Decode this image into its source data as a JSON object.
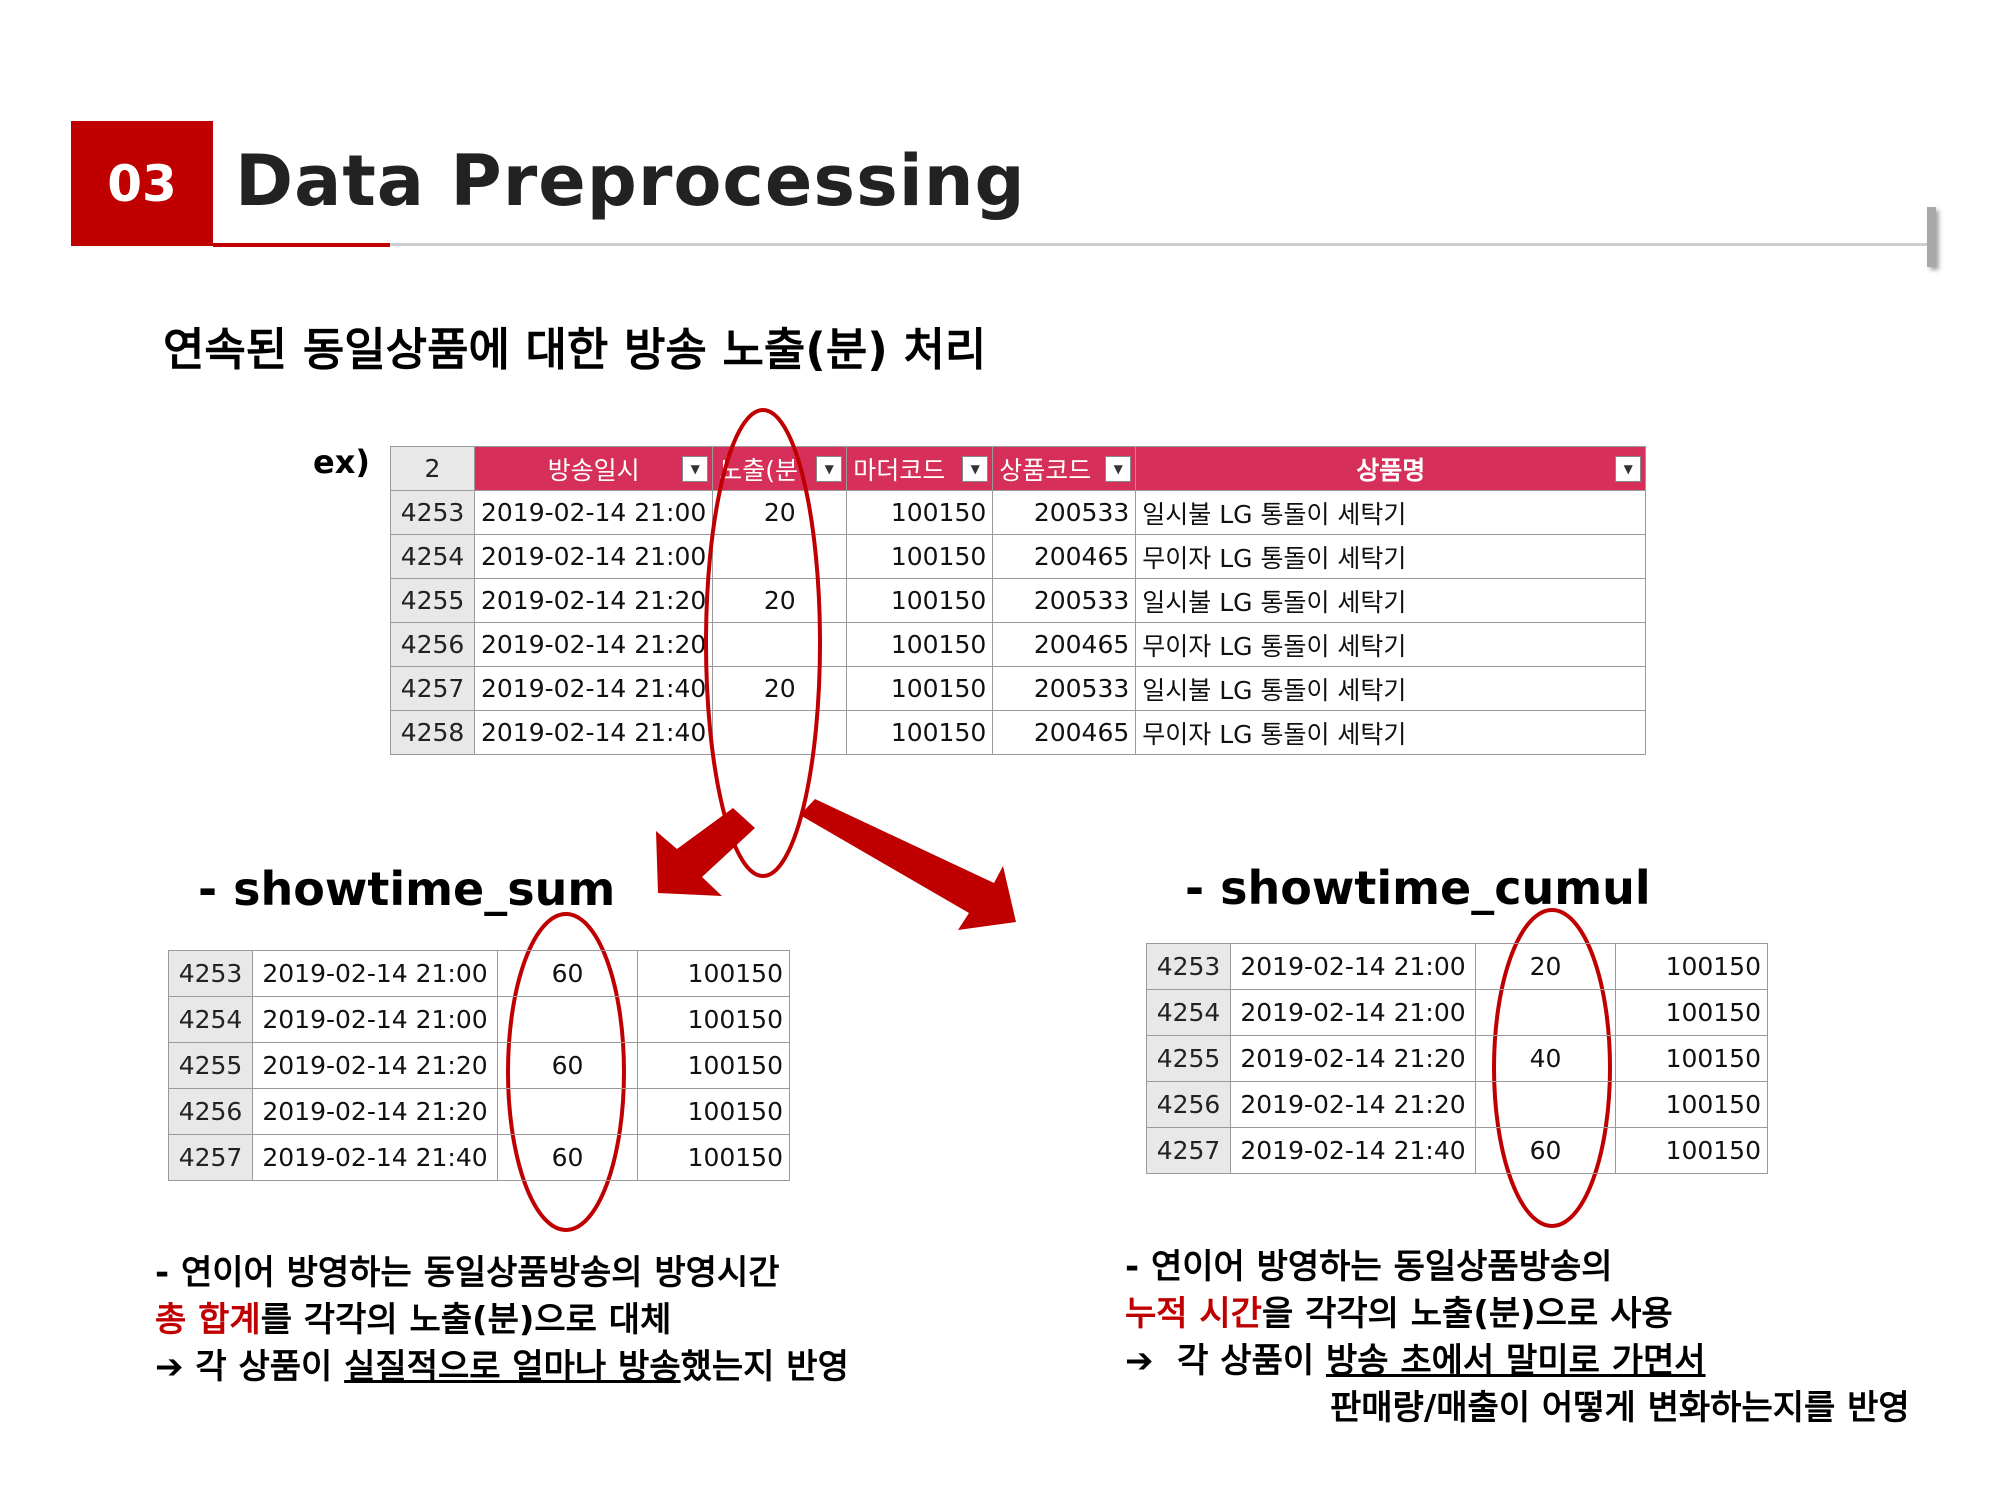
{
  "header": {
    "section_number": "03",
    "title": "Data Preprocessing"
  },
  "section_heading": "연속된 동일상품에 대한 방송 노출(분) 처리",
  "example_label": "ex)",
  "main_table": {
    "corner": "2",
    "headers": [
      "방송일시",
      "노출(분",
      "마더코드",
      "상품코드",
      "상품명"
    ],
    "rows": [
      {
        "row": "4253",
        "datetime": "2019-02-14 21:00",
        "exposure": "20",
        "mother_code": "100150",
        "product_code": "200533",
        "product_name": "일시불 LG 통돌이 세탁기"
      },
      {
        "row": "4254",
        "datetime": "2019-02-14 21:00",
        "exposure": "",
        "mother_code": "100150",
        "product_code": "200465",
        "product_name": "무이자 LG 통돌이 세탁기"
      },
      {
        "row": "4255",
        "datetime": "2019-02-14 21:20",
        "exposure": "20",
        "mother_code": "100150",
        "product_code": "200533",
        "product_name": "일시불 LG 통돌이 세탁기"
      },
      {
        "row": "4256",
        "datetime": "2019-02-14 21:20",
        "exposure": "",
        "mother_code": "100150",
        "product_code": "200465",
        "product_name": "무이자 LG 통돌이 세탁기"
      },
      {
        "row": "4257",
        "datetime": "2019-02-14 21:40",
        "exposure": "20",
        "mother_code": "100150",
        "product_code": "200533",
        "product_name": "일시불 LG 통돌이 세탁기"
      },
      {
        "row": "4258",
        "datetime": "2019-02-14 21:40",
        "exposure": "",
        "mother_code": "100150",
        "product_code": "200465",
        "product_name": "무이자 LG 통돌이 세탁기"
      }
    ]
  },
  "sum_section": {
    "title": "- showtime_sum",
    "rows": [
      {
        "row": "4253",
        "datetime": "2019-02-14 21:00",
        "value": "60",
        "code": "100150"
      },
      {
        "row": "4254",
        "datetime": "2019-02-14 21:00",
        "value": "",
        "code": "100150"
      },
      {
        "row": "4255",
        "datetime": "2019-02-14 21:20",
        "value": "60",
        "code": "100150"
      },
      {
        "row": "4256",
        "datetime": "2019-02-14 21:20",
        "value": "",
        "code": "100150"
      },
      {
        "row": "4257",
        "datetime": "2019-02-14 21:40",
        "value": "60",
        "code": "100150"
      }
    ],
    "note": {
      "line1": "- 연이어 방영하는 동일상품방송의 방영시간",
      "line2_red": "총 합계",
      "line2_rest": "를 각각의 노출(분)으로 대체",
      "line3_arrow": "➔",
      "line3_prefix": " 각 상품이 ",
      "line3_underlined": "실질적으로 얼마나 방송",
      "line3_suffix": "했는지 반영"
    }
  },
  "cumul_section": {
    "title": "- showtime_cumul",
    "rows": [
      {
        "row": "4253",
        "datetime": "2019-02-14 21:00",
        "value": "20",
        "code": "100150"
      },
      {
        "row": "4254",
        "datetime": "2019-02-14 21:00",
        "value": "",
        "code": "100150"
      },
      {
        "row": "4255",
        "datetime": "2019-02-14 21:20",
        "value": "40",
        "code": "100150"
      },
      {
        "row": "4256",
        "datetime": "2019-02-14 21:20",
        "value": "",
        "code": "100150"
      },
      {
        "row": "4257",
        "datetime": "2019-02-14 21:40",
        "value": "60",
        "code": "100150"
      }
    ],
    "note": {
      "line1": "- 연이어 방영하는 동일상품방송의",
      "line2_red": "누적 시간",
      "line2_rest": "을 각각의 노출(분)으로 사용",
      "line3_arrow": "➔",
      "line3_prefix": "  각 상품이 ",
      "line3_underlined": "방송 초에서 말미로 가면서",
      "line4": "판매량/매출이 어떻게 변화하는지를 반영"
    }
  },
  "colors": {
    "accent_red": "#c00000",
    "header_pink": "#d6305a"
  }
}
